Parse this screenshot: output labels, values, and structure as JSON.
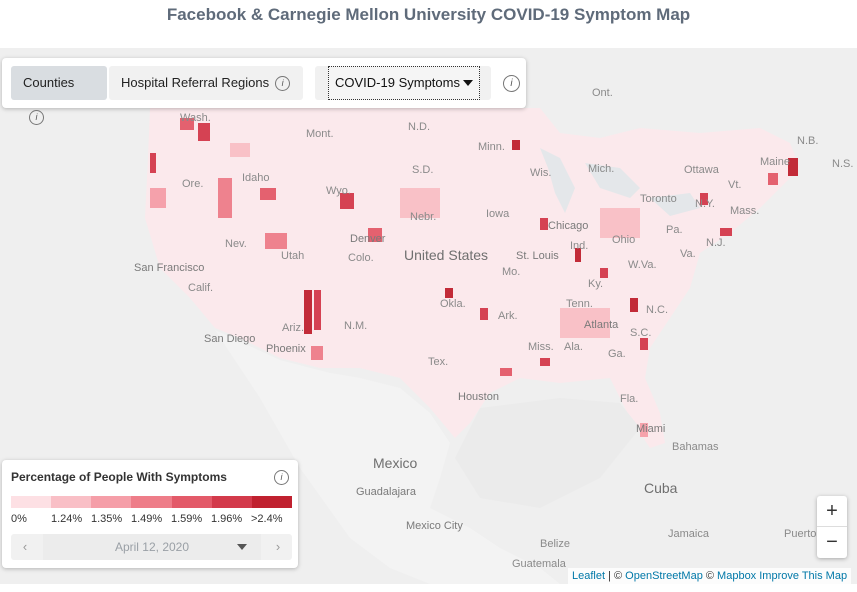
{
  "title": "Facebook & Carnegie Mellon University COVID-19 Symptom Map",
  "controls": {
    "counties_label": "Counties",
    "hrr_label": "Hospital Referral Regions",
    "info_glyph": "i",
    "select_value": "COVID-19 Symptoms"
  },
  "map": {
    "labels": {
      "ont": "Ont.",
      "nd": "N.D.",
      "mont": "Mont.",
      "wash": "Wash.",
      "minn": "Minn.",
      "mich": "Mich.",
      "ottawa": "Ottawa",
      "nb": "N.B.",
      "ns": "N.S.",
      "maine": "Maine",
      "idaho": "Idaho",
      "sd": "S.D.",
      "wis": "Wis.",
      "vt": "Vt.",
      "ore": "Ore.",
      "wyo": "Wyo.",
      "toronto": "Toronto",
      "ny": "N.Y.",
      "mass": "Mass.",
      "nebr": "Nebr.",
      "iowa": "Iowa",
      "chicago": "Chicago",
      "pa": "Pa.",
      "nev": "Nev.",
      "denver": "Denver",
      "nj": "N.J.",
      "ohio": "Ohio",
      "us": "United States",
      "utah": "Utah",
      "colo": "Colo.",
      "stlouis": "St. Louis",
      "sf": "San Francisco",
      "ind": "Ind.",
      "wva": "W.Va.",
      "va": "Va.",
      "mo": "Mo.",
      "calif": "Calif.",
      "ky": "Ky.",
      "tenn": "Tenn.",
      "nc": "N.C.",
      "okla": "Okla.",
      "ariz": "Ariz.",
      "nm": "N.M.",
      "ark": "Ark.",
      "atlanta": "Atlanta",
      "sc": "S.C.",
      "sandiego": "San Diego",
      "phoenix": "Phoenix",
      "miss": "Miss.",
      "ala": "Ala.",
      "ga": "Ga.",
      "tex": "Tex.",
      "houston": "Houston",
      "fla": "Fla.",
      "miami": "Miami",
      "bahamas": "Bahamas",
      "mexico": "Mexico",
      "guadalajara": "Guadalajara",
      "cuba": "Cuba",
      "mexicocity": "Mexico City",
      "jamaica": "Jamaica",
      "puerto": "Puerto R",
      "belize": "Belize",
      "guatemala": "Guatemala"
    }
  },
  "legend": {
    "title": "Percentage of People With Symptoms",
    "info_glyph": "i",
    "colors": [
      "#fde0e4",
      "#f9bfc6",
      "#f59ea8",
      "#ee7d89",
      "#e35a69",
      "#d33a4b",
      "#c0212f"
    ],
    "ticks": [
      "0%",
      "1.24%",
      "1.35%",
      "1.49%",
      "1.59%",
      "1.96%",
      ">2.4%"
    ],
    "date": "April 12, 2020",
    "prev_glyph": "‹",
    "next_glyph": "›"
  },
  "zoom": {
    "in": "+",
    "out": "−"
  },
  "attribution": {
    "leaflet": "Leaflet",
    "sep1": " | © ",
    "osm": "OpenStreetMap",
    "sep2": " © ",
    "mapbox": "Mapbox Improve This Map"
  }
}
